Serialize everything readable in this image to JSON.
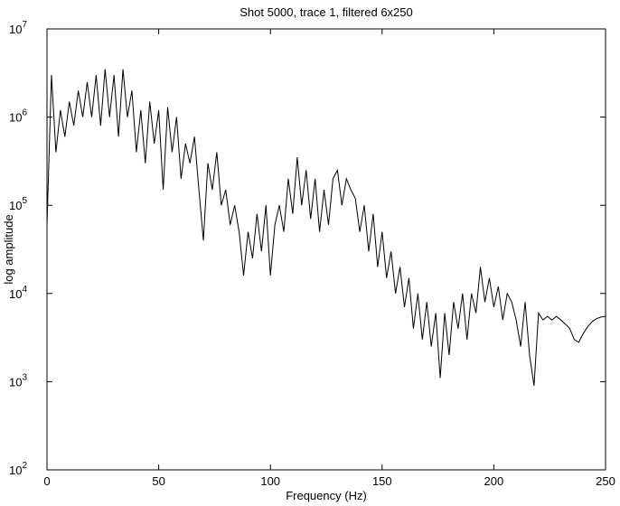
{
  "chart_data": {
    "type": "line",
    "title": "Shot 5000, trace 1, filtered 6x250",
    "x_label": "Frequency (Hz)",
    "y_label": "log amplitude",
    "log_y": true,
    "color": "#000000",
    "xlim": [
      0,
      250
    ],
    "xticks": [
      0,
      50,
      100,
      150,
      200,
      250
    ],
    "ylim": [
      100,
      10000000
    ],
    "yticks": [
      {
        "value": 100,
        "label": "10",
        "exponent": "2"
      },
      {
        "value": 1000,
        "label": "10",
        "exponent": "3"
      },
      {
        "value": 10000,
        "label": "10",
        "exponent": "4"
      },
      {
        "value": 100000,
        "label": "10",
        "exponent": "5"
      },
      {
        "value": 1000000,
        "label": "10",
        "exponent": "6"
      },
      {
        "value": 10000000,
        "label": "10",
        "exponent": "7"
      }
    ],
    "x": [
      0,
      2,
      4,
      6,
      8,
      10,
      12,
      14,
      16,
      18,
      20,
      22,
      24,
      26,
      28,
      30,
      32,
      34,
      36,
      38,
      40,
      42,
      44,
      46,
      48,
      50,
      52,
      54,
      56,
      58,
      60,
      62,
      64,
      66,
      68,
      70,
      72,
      74,
      76,
      78,
      80,
      82,
      84,
      86,
      88,
      90,
      92,
      94,
      96,
      98,
      100,
      102,
      104,
      106,
      108,
      110,
      112,
      114,
      116,
      118,
      120,
      122,
      124,
      126,
      128,
      130,
      132,
      134,
      136,
      138,
      140,
      142,
      144,
      146,
      148,
      150,
      152,
      154,
      156,
      158,
      160,
      162,
      164,
      166,
      168,
      170,
      172,
      174,
      176,
      178,
      180,
      182,
      184,
      186,
      188,
      190,
      192,
      194,
      196,
      198,
      200,
      202,
      204,
      206,
      208,
      210,
      212,
      214,
      216,
      218,
      220,
      222,
      224,
      226,
      228,
      230,
      232,
      234,
      236,
      238,
      240,
      242,
      244,
      246,
      248,
      250
    ],
    "series": [
      {
        "values": [
          60000,
          3000000,
          400000,
          1200000,
          600000,
          1500000,
          800000,
          2000000,
          1000000,
          2500000,
          1000000,
          3000000,
          800000,
          3500000,
          1000000,
          3000000,
          600000,
          3500000,
          1000000,
          2000000,
          400000,
          1200000,
          300000,
          1500000,
          500000,
          1200000,
          150000,
          1300000,
          400000,
          1000000,
          200000,
          500000,
          300000,
          600000,
          150000,
          40000,
          300000,
          150000,
          400000,
          100000,
          150000,
          60000,
          100000,
          50000,
          16000,
          50000,
          25000,
          80000,
          30000,
          100000,
          16000,
          60000,
          100000,
          50000,
          200000,
          80000,
          350000,
          100000,
          250000,
          70000,
          200000,
          50000,
          150000,
          60000,
          200000,
          250000,
          100000,
          200000,
          150000,
          120000,
          50000,
          100000,
          30000,
          80000,
          20000,
          50000,
          15000,
          30000,
          10000,
          20000,
          7000,
          15000,
          4000,
          10000,
          3000,
          8000,
          2500,
          6000,
          1100,
          6000,
          2000,
          8000,
          4000,
          10000,
          3000,
          10000,
          6000,
          20000,
          8000,
          15000,
          7000,
          12000,
          5000,
          10000,
          8000,
          5000,
          2500,
          8000,
          2000,
          900,
          6000,
          5000,
          5500,
          5000,
          5500,
          5000,
          4500,
          4000,
          3000,
          2800,
          3500,
          4200,
          4800,
          5200,
          5400,
          5500
        ]
      }
    ]
  }
}
